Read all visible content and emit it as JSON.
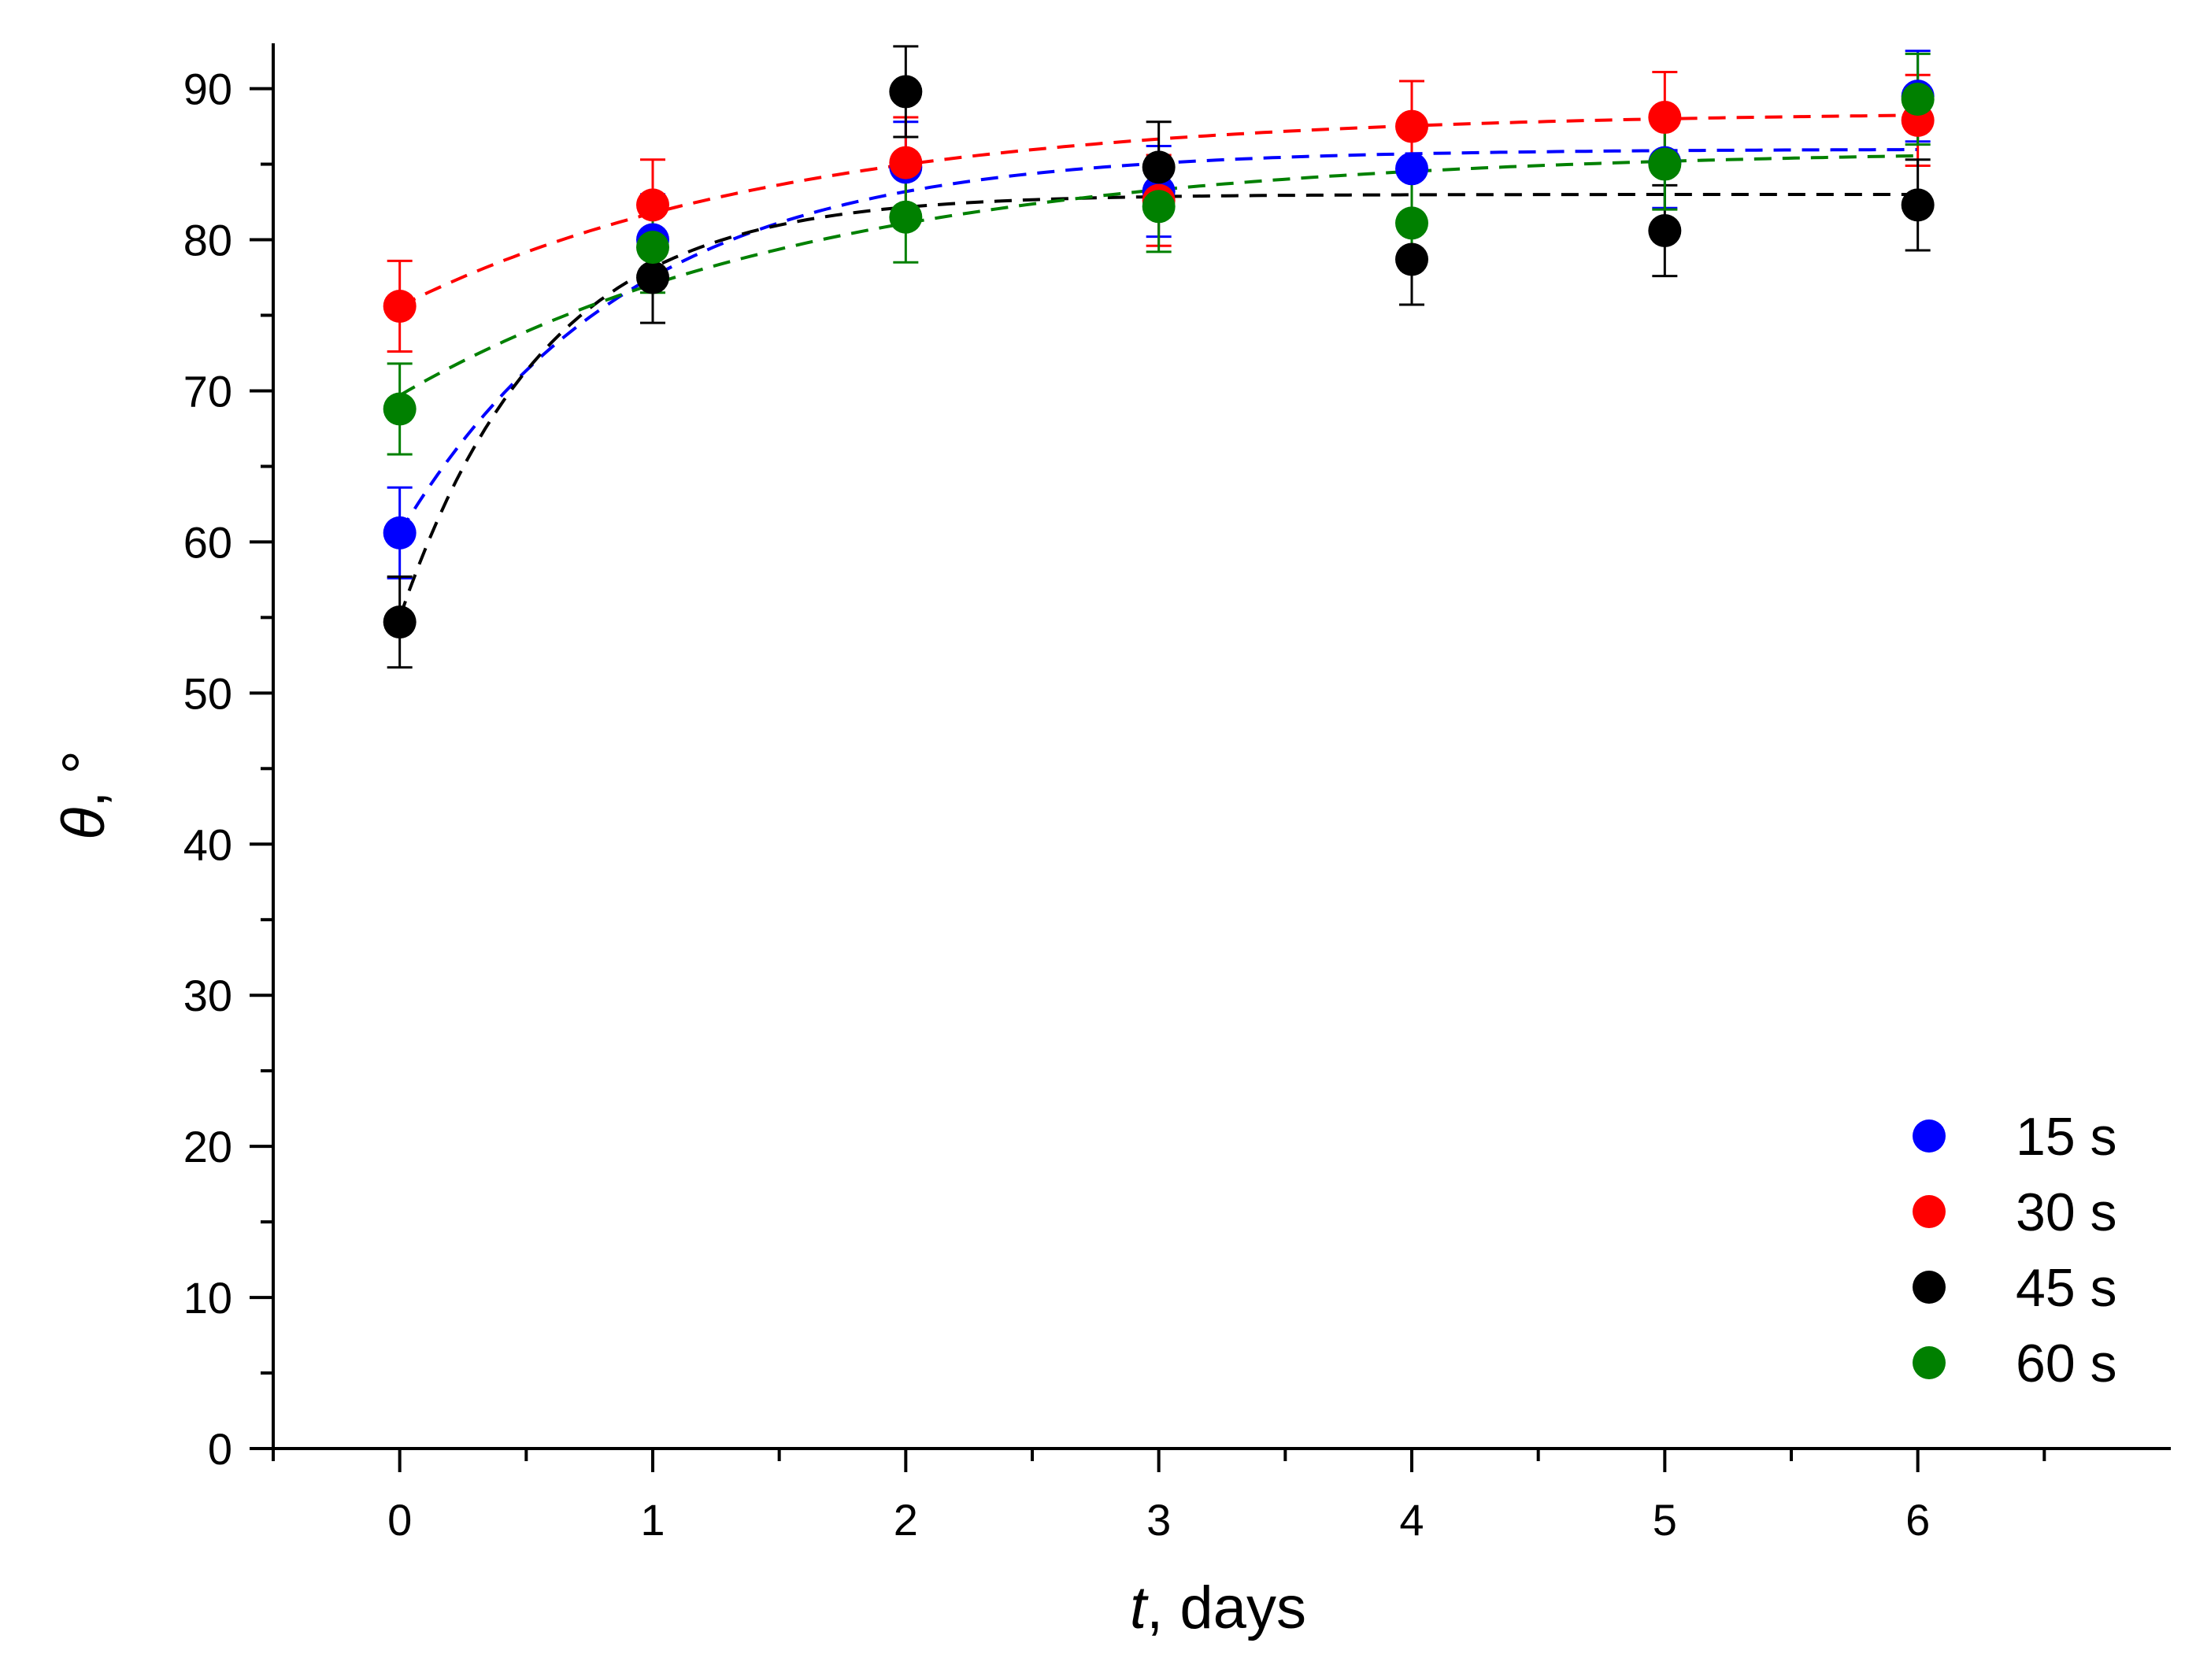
{
  "chart_data": {
    "type": "scatter",
    "title": "",
    "xlabel": {
      "var": "t",
      "rest": ", days"
    },
    "ylabel": {
      "var": "θ",
      "rest": ", °"
    },
    "xlim": [
      -0.5,
      7.0
    ],
    "ylim": [
      0,
      93
    ],
    "x_ticks": [
      0,
      1,
      2,
      3,
      4,
      5,
      6
    ],
    "x_tick_labels": [
      "0",
      "1",
      "2",
      "3",
      "4",
      "5",
      "6"
    ],
    "y_ticks": [
      0,
      10,
      20,
      30,
      40,
      50,
      60,
      70,
      80,
      90
    ],
    "y_tick_labels": [
      "0",
      "10",
      "20",
      "30",
      "40",
      "50",
      "60",
      "70",
      "80",
      "90"
    ],
    "grid": false,
    "legend_position": "bottom-right",
    "x": [
      0,
      1,
      2,
      3,
      4,
      5,
      6
    ],
    "series": [
      {
        "name": "15 s",
        "color": "#0000ff",
        "values": [
          60.6,
          80.0,
          84.8,
          83.2,
          84.7,
          85.1,
          89.5
        ],
        "errors": [
          3.0,
          3.0,
          3.0,
          3.0,
          3.0,
          3.0,
          3.0
        ],
        "fit": {
          "a": 86.0,
          "b": 25.4,
          "k": 1.1
        }
      },
      {
        "name": "30 s",
        "color": "#ff0000",
        "values": [
          75.6,
          82.3,
          85.1,
          82.6,
          87.5,
          88.1,
          87.9
        ],
        "errors": [
          3.0,
          3.0,
          3.0,
          3.0,
          3.0,
          3.0,
          3.0
        ],
        "fit": {
          "a": 88.5,
          "b": 12.9,
          "k": 0.65
        }
      },
      {
        "name": "45 s",
        "color": "#000000",
        "values": [
          54.7,
          77.5,
          89.8,
          84.8,
          78.7,
          80.6,
          82.3
        ],
        "errors": [
          3.0,
          3.0,
          3.0,
          3.0,
          3.0,
          3.0,
          3.0
        ],
        "fit": {
          "a": 83.0,
          "b": 28.0,
          "k": 1.75
        }
      },
      {
        "name": "60 s",
        "color": "#008000",
        "values": [
          68.8,
          79.5,
          81.5,
          82.2,
          81.1,
          85.0,
          89.3
        ],
        "errors": [
          3.0,
          3.0,
          3.0,
          3.0,
          3.0,
          3.0,
          3.0
        ],
        "fit": {
          "a": 86.0,
          "b": 16.3,
          "k": 0.6
        }
      }
    ]
  }
}
